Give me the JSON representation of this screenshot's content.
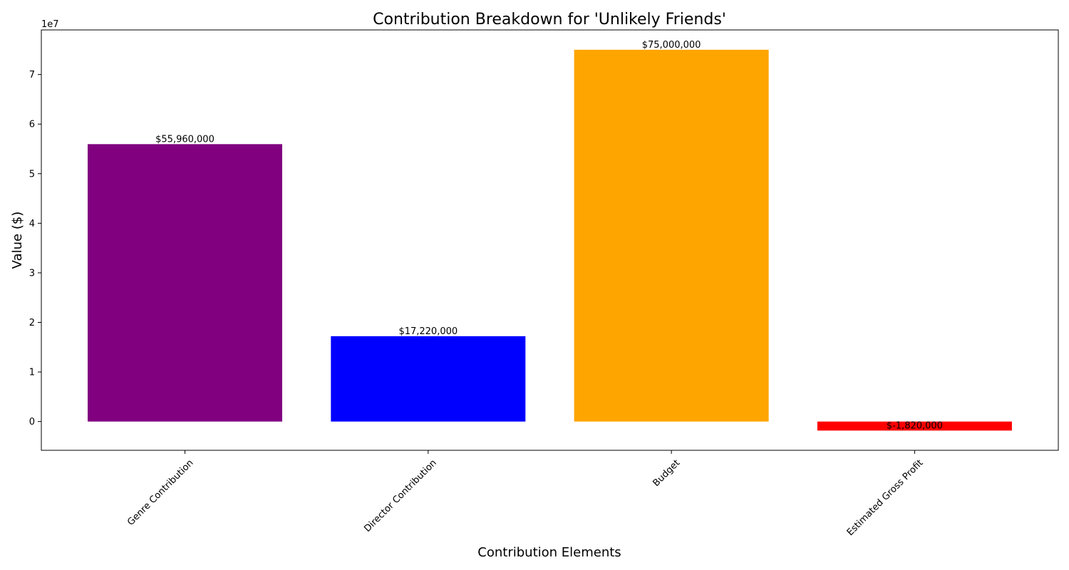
{
  "chart_data": {
    "type": "bar",
    "title": "Contribution Breakdown for 'Unlikely Friends'",
    "xlabel": "Contribution Elements",
    "ylabel": "Value ($)",
    "y_offset_label": "1e7",
    "y_scale": 10000000,
    "ylim": [
      -5800000,
      79000000
    ],
    "yticks": [
      0,
      10000000,
      20000000,
      30000000,
      40000000,
      50000000,
      60000000,
      70000000
    ],
    "ytick_labels": [
      "0",
      "1",
      "2",
      "3",
      "4",
      "5",
      "6",
      "7"
    ],
    "grid": false,
    "categories": [
      "Genre Contribution",
      "Director Contribution",
      "Budget",
      "Estimated Gross Profit"
    ],
    "values": [
      55960000,
      17220000,
      75000000,
      -1820000
    ],
    "data_labels": [
      "$55,960,000",
      "$17,220,000",
      "$75,000,000",
      "$-1,820,000"
    ],
    "colors": [
      "#800080",
      "#0000ff",
      "#ffa500",
      "#ff0000"
    ]
  }
}
